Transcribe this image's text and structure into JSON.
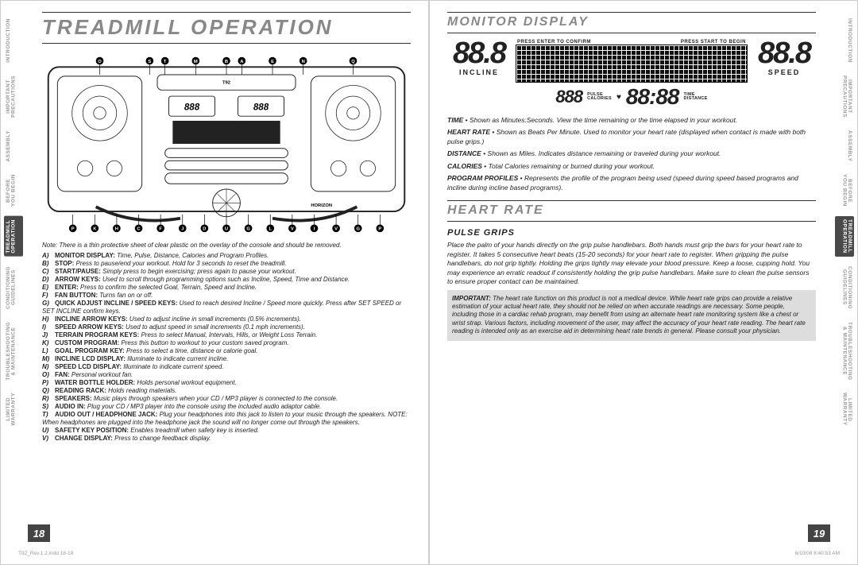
{
  "sidetabs": [
    "INTRODUCTION",
    "IMPORTANT\nPRECAUTIONS",
    "ASSEMBLY",
    "BEFORE\nYOU BEGIN",
    "TREADMILL\nOPERATION",
    "CONDITIONING\nGUIDELINES",
    "TROUBLESHOOTING\n& MAINTENANCE",
    "LIMITED\nWARRANTY"
  ],
  "active_tab_index": 4,
  "left": {
    "title": "TREADMILL OPERATION",
    "note": "Note: There is a thin protective sheet of clear plastic on the overlay of the console and should be removed.",
    "legend": [
      {
        "k": "A)",
        "b": "MONITOR DISPLAY:",
        "t": " Time, Pulse, Distance, Calories and Program Profiles."
      },
      {
        "k": "B)",
        "b": "STOP:",
        "t": " Press to pause/end your workout. Hold for 3 seconds to reset the treadmill."
      },
      {
        "k": "C)",
        "b": "START/PAUSE:",
        "t": " Simply press to begin exercising; press again to pause your workout."
      },
      {
        "k": "D)",
        "b": "ARROW KEYS:",
        "t": " Used to scroll through programming options such as Incline, Speed, Time and Distance."
      },
      {
        "k": "E)",
        "b": "ENTER:",
        "t": " Press to confirm the selected Goal, Terrain, Speed and Incline."
      },
      {
        "k": "F)",
        "b": "FAN BUTTON:",
        "t": " Turns fan on or off."
      },
      {
        "k": "G)",
        "b": "QUICK ADJUST INCLINE / SPEED KEYS:",
        "t": " Used to reach desired Incline / Speed more quickly. Press after SET SPEED or SET INCLINE confirm keys."
      },
      {
        "k": "H)",
        "b": "INCLINE ARROW KEYS:",
        "t": " Used to adjust incline in small increments (0.5% increments)."
      },
      {
        "k": "I)",
        "b": "SPEED ARROW KEYS:",
        "t": " Used to adjust speed in small increments (0.1 mph increments)."
      },
      {
        "k": "J)",
        "b": "TERRAIN PROGRAM KEYS:",
        "t": " Press to select Manual, Intervals, Hills, or Weight Loss Terrain."
      },
      {
        "k": "K)",
        "b": "CUSTOM PROGRAM:",
        "t": " Press this button to workout to your custom saved program."
      },
      {
        "k": "L)",
        "b": "GOAL PROGRAM KEY:",
        "t": " Press to select a time, distance or calorie goal."
      },
      {
        "k": "M)",
        "b": "INCLINE LCD DISPLAY:",
        "t": " Illuminate to indicate current incline."
      },
      {
        "k": "N)",
        "b": "SPEED LCD DISPLAY:",
        "t": " Illuminate to indicate current speed."
      },
      {
        "k": "O)",
        "b": "FAN:",
        "t": " Personal workout fan."
      },
      {
        "k": "P)",
        "b": "WATER BOTTLE HOLDER:",
        "t": " Holds personal workout equipment."
      },
      {
        "k": "Q)",
        "b": "READING RACK:",
        "t": " Holds reading materials."
      },
      {
        "k": "R)",
        "b": "SPEAKERS:",
        "t": " Music plays through speakers when your CD / MP3 player is connected to the console."
      },
      {
        "k": "S)",
        "b": "AUDIO IN:",
        "t": " Plug your CD / MP3 player into the console using the included audio adaptor cable."
      },
      {
        "k": "T)",
        "b": "AUDIO OUT / HEADPHONE JACK:",
        "t": " Plug your headphones into this jack to listen to your music through the speakers. NOTE: When headphones are plugged into the headphone jack the sound will no longer come out through the speakers."
      },
      {
        "k": "U)",
        "b": "SAFETY KEY POSITION:",
        "t": " Enables treadmill when safety key is inserted."
      },
      {
        "k": "V)",
        "b": "CHANGE DISPLAY:",
        "t": " Press to change feedback display."
      }
    ],
    "pagenum": "18",
    "footer_left": "T92_Rev.1.2.indd   18-19"
  },
  "right": {
    "title_monitor": "MONITOR DISPLAY",
    "seg_value": "88.8",
    "incline_label": "INCLINE",
    "speed_label": "SPEED",
    "matrix_left": "PRESS ENTER TO CONFIRM",
    "matrix_right": "PRESS START TO BEGIN",
    "mid_left": "888",
    "mid_pulse": "PULSE",
    "mid_cal": "CALORIES",
    "mid_center": "88:88",
    "mid_time": "TIME",
    "mid_dist": "DISTANCE",
    "defs": [
      {
        "b": "TIME",
        "t": "Shown as Minutes:Seconds. View the time remaining or the time elapsed in your workout."
      },
      {
        "b": "HEART RATE",
        "t": "Shown as Beats Per Minute. Used to monitor your heart rate (displayed when contact is made with both pulse grips.)"
      },
      {
        "b": "DISTANCE",
        "t": "Shown as Miles. Indicates distance remaining or traveled during your workout."
      },
      {
        "b": "CALORIES",
        "t": "Total Calories remaining or burned during your workout."
      },
      {
        "b": "PROGRAM PROFILES",
        "t": "Represents the profile of the program being used (speed during speed based programs and incline during incline based programs)."
      }
    ],
    "title_heart": "HEART RATE",
    "pulse_title": "PULSE GRIPS",
    "pulse_text": "Place the palm of your hands directly on the grip pulse handlebars. Both hands must grip the bars for your heart rate to register. It takes 5 consecutive heart beats (15-20 seconds) for your heart rate to register. When gripping the pulse handlebars, do not grip tightly. Holding the grips tightly may elevate your blood pressure. Keep a loose, cupping hold. You may experience an erratic readout if consistently holding the grip pulse handlebars. Make sure to clean the pulse sensors to ensure proper contact can be maintained.",
    "important_label": "IMPORTANT:",
    "important_text": " The heart rate function on this product is not a medical device. While heart rate grips can provide a relative estimation of your actual heart rate, they should not be relied on when accurate readings are necessary. Some people, including those in a cardiac rehab program, may benefit from using an alternate heart rate monitoring system like a chest or wrist strap. Various factors, including movement of the user, may affect the accuracy of your heart rate reading. The heart rate reading is intended only as an exercise aid in determining heart rate trends in general.  Please consult your physician.",
    "pagenum": "19",
    "footer_right": "6/10/08   8:40:53 AM"
  },
  "diagram": {
    "callout_top": [
      "O",
      "S",
      "T",
      "M",
      "B",
      "A",
      "E",
      "N",
      "Q"
    ],
    "callout_bot": [
      "P",
      "K",
      "H",
      "C",
      "F",
      "J",
      "D",
      "U",
      "G",
      "L",
      "V",
      "I",
      "V",
      "G",
      "P"
    ],
    "brand": "HORIZON",
    "model": "T92",
    "small_seg": "888"
  },
  "colors": {
    "header_gray": "#888888",
    "pagebox": "#444444",
    "notebox": "#dddddd",
    "sidetab_inactive": "#999999",
    "sidetab_active_bg": "#4a4a4a"
  }
}
